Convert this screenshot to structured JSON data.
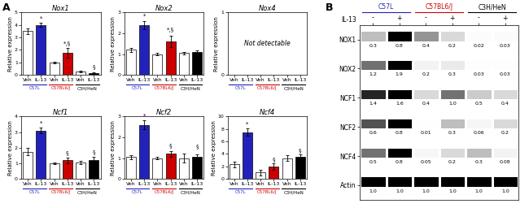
{
  "chart_data": [
    {
      "type": "bar",
      "panel": "A",
      "title": "Nox1",
      "ylabel": "Relative expression",
      "categories": [
        "Veh",
        "IL-13",
        "Veh",
        "IL-13",
        "Veh",
        "IL-13"
      ],
      "values": [
        3.5,
        4.0,
        1.0,
        1.75,
        0.25,
        0.15
      ],
      "errors": [
        0.25,
        0.18,
        0.06,
        0.38,
        0.06,
        0.05
      ],
      "colors": [
        "white",
        "#2222bb",
        "white",
        "#cc0000",
        "white",
        "black"
      ],
      "ylim": [
        0,
        5
      ],
      "yticks": [
        0,
        1,
        2,
        3,
        4,
        5
      ],
      "annotations": [
        {
          "text": "*",
          "category": 1,
          "y": 4.35
        },
        {
          "text": "*,§",
          "category": 3,
          "y": 2.3
        },
        {
          "text": "§",
          "category": 5,
          "y": 0.42
        }
      ],
      "groups": [
        {
          "label": "C57L",
          "color": "#2222bb",
          "categories": [
            0,
            1
          ]
        },
        {
          "label": "C57BL6/J",
          "color": "#cc0000",
          "categories": [
            2,
            3
          ]
        },
        {
          "label": "C3H/HeN",
          "color": "black",
          "categories": [
            4,
            5
          ]
        }
      ]
    },
    {
      "type": "bar",
      "title": "Nox2",
      "ylabel": "Relative expression",
      "categories": [
        "Veh",
        "IL-13",
        "Veh",
        "IL-13",
        "Veh",
        "IL-13"
      ],
      "values": [
        1.2,
        2.4,
        1.0,
        1.6,
        1.05,
        1.1
      ],
      "errors": [
        0.1,
        0.2,
        0.06,
        0.28,
        0.06,
        0.07
      ],
      "colors": [
        "white",
        "#2222bb",
        "white",
        "#cc0000",
        "white",
        "black"
      ],
      "ylim": [
        0,
        3
      ],
      "yticks": [
        0,
        1,
        2,
        3
      ],
      "annotations": [
        {
          "text": "*",
          "category": 1,
          "y": 2.72
        },
        {
          "text": "*,§",
          "category": 3,
          "y": 2.02
        }
      ],
      "groups": [
        {
          "label": "C57L",
          "color": "#2222bb",
          "categories": [
            0,
            1
          ]
        },
        {
          "label": "C57BL6/J",
          "color": "#cc0000",
          "categories": [
            2,
            3
          ]
        },
        {
          "label": "C3H/HeN",
          "color": "black",
          "categories": [
            4,
            5
          ]
        }
      ]
    },
    {
      "type": "bar",
      "title": "Nox4",
      "ylabel": "Relative expression",
      "categories": [
        "Veh",
        "IL-13",
        "Veh",
        "IL-13",
        "Veh",
        "IL-13"
      ],
      "values": [
        null,
        null,
        null,
        null,
        null,
        null
      ],
      "errors": [
        null,
        null,
        null,
        null,
        null,
        null
      ],
      "ylim": [
        0,
        1
      ],
      "yticks": [
        0,
        1
      ],
      "annotations": [
        {
          "text": "Not detectable"
        }
      ],
      "groups": [
        {
          "label": "C57L",
          "color": "#2222bb",
          "categories": [
            0,
            1
          ]
        },
        {
          "label": "C57BL6/J",
          "color": "#cc0000",
          "categories": [
            2,
            3
          ]
        },
        {
          "label": "C3H/HeN",
          "color": "black",
          "categories": [
            4,
            5
          ]
        }
      ]
    },
    {
      "type": "bar",
      "title": "Ncf1",
      "ylabel": "Relative expression",
      "categories": [
        "Veh",
        "IL-13",
        "Veh",
        "IL-13",
        "Veh",
        "IL-13"
      ],
      "values": [
        1.75,
        3.1,
        1.0,
        1.2,
        1.05,
        1.2
      ],
      "errors": [
        0.22,
        0.18,
        0.06,
        0.18,
        0.09,
        0.22
      ],
      "colors": [
        "white",
        "#2222bb",
        "white",
        "#cc0000",
        "white",
        "black"
      ],
      "ylim": [
        0,
        4
      ],
      "yticks": [
        0,
        1,
        2,
        3,
        4
      ],
      "annotations": [
        {
          "text": "*",
          "category": 1,
          "y": 3.42
        },
        {
          "text": "§",
          "category": 3,
          "y": 1.52
        },
        {
          "text": "§",
          "category": 5,
          "y": 1.57
        }
      ],
      "groups": [
        {
          "label": "C57L",
          "color": "#2222bb",
          "categories": [
            0,
            1
          ]
        },
        {
          "label": "C57BL6/J",
          "color": "#cc0000",
          "categories": [
            2,
            3
          ]
        },
        {
          "label": "C3H/HeN",
          "color": "black",
          "categories": [
            4,
            5
          ]
        }
      ]
    },
    {
      "type": "bar",
      "title": "Ncf2",
      "ylabel": "Relative expression",
      "categories": [
        "Veh",
        "IL-13",
        "Veh",
        "IL-13",
        "Veh",
        "IL-13"
      ],
      "values": [
        1.05,
        2.6,
        1.0,
        1.2,
        1.0,
        1.05
      ],
      "errors": [
        0.09,
        0.22,
        0.06,
        0.12,
        0.22,
        0.12
      ],
      "colors": [
        "white",
        "#2222bb",
        "white",
        "#cc0000",
        "white",
        "black"
      ],
      "ylim": [
        0,
        3
      ],
      "yticks": [
        0,
        1,
        2,
        3
      ],
      "annotations": [
        {
          "text": "*",
          "category": 1,
          "y": 2.92
        },
        {
          "text": "§",
          "category": 3,
          "y": 1.48
        },
        {
          "text": "§",
          "category": 5,
          "y": 1.43
        }
      ],
      "groups": [
        {
          "label": "C57L",
          "color": "#2222bb",
          "categories": [
            0,
            1
          ]
        },
        {
          "label": "C57BL6/J",
          "color": "#cc0000",
          "categories": [
            2,
            3
          ]
        },
        {
          "label": "C3H/HeN",
          "color": "black",
          "categories": [
            4,
            5
          ]
        }
      ]
    },
    {
      "type": "bar",
      "title": "Ncf4",
      "ylabel": "Relative expression",
      "categories": [
        "Veh",
        "IL-13",
        "Veh",
        "IL-13",
        "Veh",
        "IL-13"
      ],
      "values": [
        2.3,
        7.5,
        1.0,
        2.0,
        3.3,
        3.5
      ],
      "errors": [
        0.45,
        0.55,
        0.45,
        0.55,
        0.45,
        0.38
      ],
      "colors": [
        "white",
        "#2222bb",
        "white",
        "#cc0000",
        "white",
        "black"
      ],
      "ylim": [
        0,
        10
      ],
      "yticks": [
        0,
        2,
        4,
        6,
        8,
        10
      ],
      "annotations": [
        {
          "text": "*",
          "category": 1,
          "y": 8.4
        },
        {
          "text": "§",
          "category": 3,
          "y": 2.75
        },
        {
          "text": "§",
          "category": 5,
          "y": 4.1
        }
      ],
      "groups": [
        {
          "label": "C57L",
          "color": "#2222bb",
          "categories": [
            0,
            1
          ]
        },
        {
          "label": "C57BL6/J",
          "color": "#cc0000",
          "categories": [
            2,
            3
          ]
        },
        {
          "label": "C3H/HeN",
          "color": "black",
          "categories": [
            4,
            5
          ]
        }
      ]
    },
    {
      "type": "heatmap",
      "panel": "B",
      "xlabel": "IL-13",
      "categories": [
        "-",
        "+",
        "-",
        "+",
        "-",
        "+"
      ],
      "rows": [
        "NOX1",
        "NOX2",
        "NCF1",
        "NCF2",
        "NCF4",
        "Actin"
      ],
      "cells": [
        [
          0.3,
          0.8,
          0.4,
          0.2,
          0.02,
          0.03
        ],
        [
          1.2,
          1.9,
          0.2,
          0.3,
          0.03,
          0.03
        ],
        [
          1.4,
          1.6,
          0.4,
          1.0,
          0.5,
          0.4
        ],
        [
          0.6,
          0.8,
          0.01,
          0.3,
          0.06,
          0.2
        ],
        [
          0.5,
          0.8,
          0.05,
          0.2,
          0.3,
          0.08
        ],
        [
          1.0,
          1.0,
          1.0,
          1.0,
          1.0,
          1.0
        ]
      ],
      "data_labels": true,
      "groups": [
        {
          "label": "C57L",
          "color": "#2222bb",
          "categories": [
            0,
            1
          ]
        },
        {
          "label": "C57BL6/J",
          "color": "#cc0000",
          "categories": [
            2,
            3
          ]
        },
        {
          "label": "C3H/HeN",
          "color": "black",
          "categories": [
            4,
            5
          ]
        }
      ]
    }
  ]
}
